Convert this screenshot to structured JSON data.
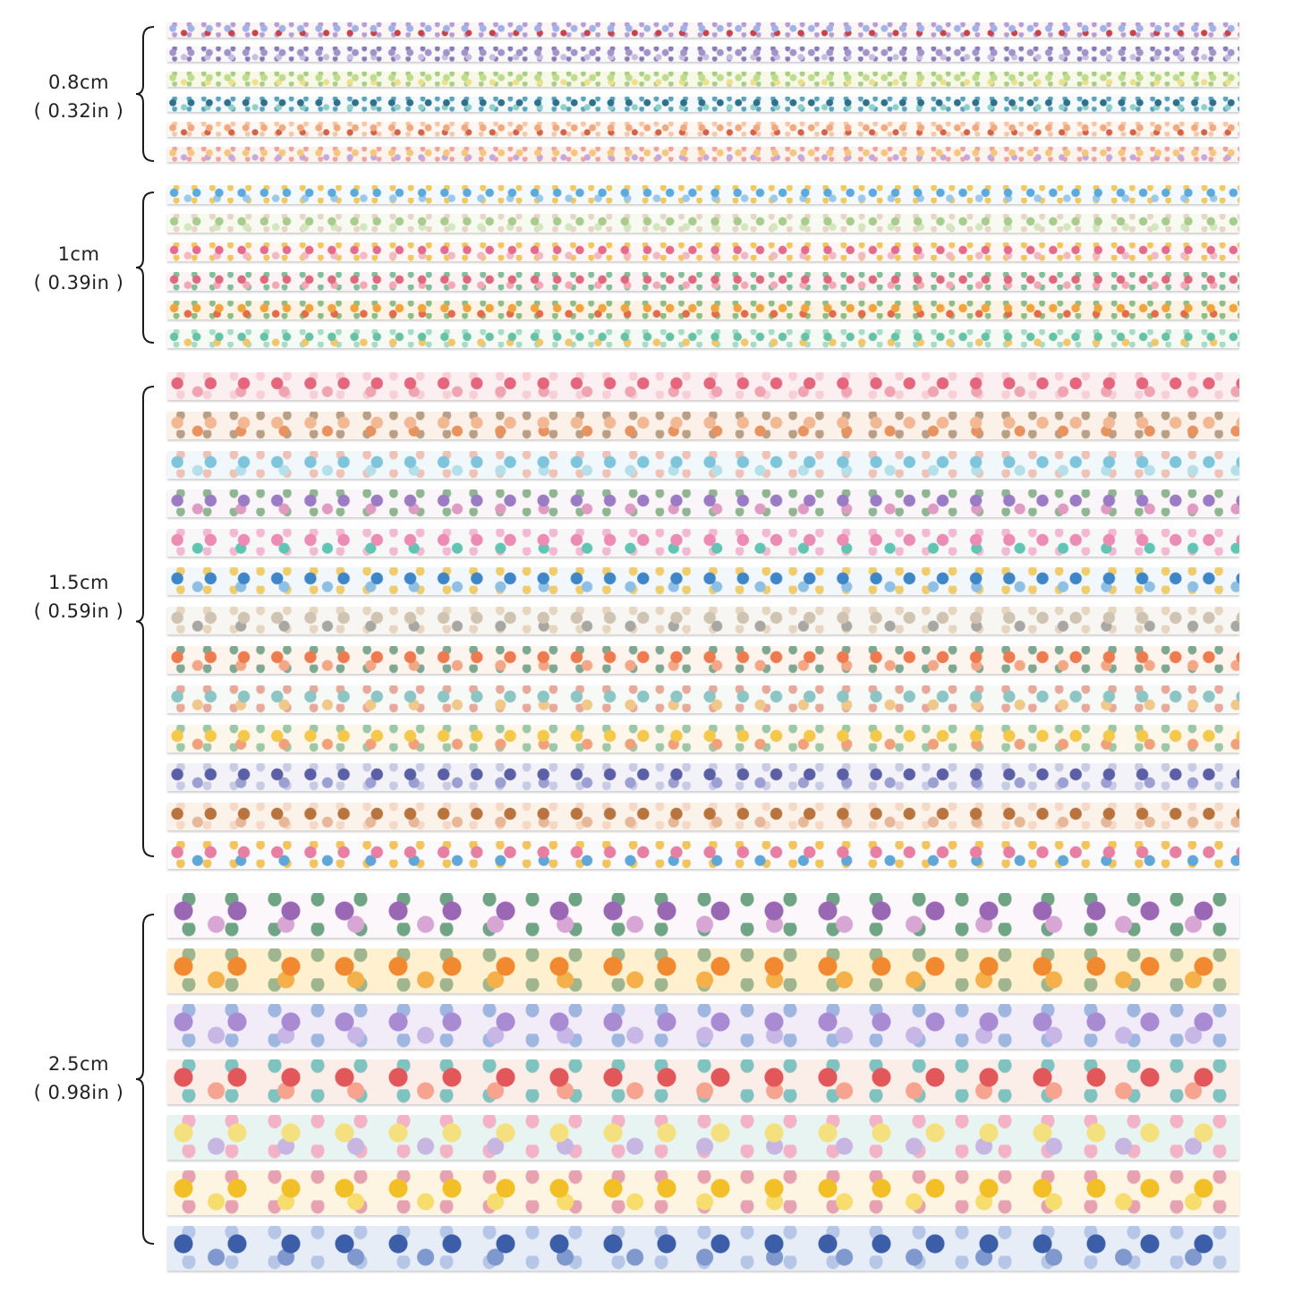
{
  "groups": [
    {
      "size_cm": "0.8cm",
      "size_in": "( 0.32in )",
      "strips": [
        {
          "base": "#fbf6f4",
          "c1": "#9fb3e6",
          "c2": "#c9414a",
          "c3": "#b89bd8"
        },
        {
          "base": "#f9f8fb",
          "c1": "#a393c8",
          "c2": "#c7bde0",
          "c3": "#8a7bb8"
        },
        {
          "base": "#f7f8e6",
          "c1": "#bfdc8e",
          "c2": "#eee08a",
          "c3": "#a6cf86"
        },
        {
          "base": "#f4fafb",
          "c1": "#2f6f8a",
          "c2": "#8ed0c9",
          "c3": "#5aa3c0"
        },
        {
          "base": "#fdf6f1",
          "c1": "#f0a97e",
          "c2": "#d2624a",
          "c3": "#f6c6a8"
        },
        {
          "base": "#fbf4ee",
          "c1": "#f4c77c",
          "c2": "#c6a7de",
          "c3": "#f1a2a0"
        }
      ]
    },
    {
      "size_cm": "1cm",
      "size_in": "( 0.39in )",
      "strips": [
        {
          "base": "#f3f9fc",
          "c1": "#5ca9db",
          "c2": "#9cc9ea",
          "c3": "#f2c95f"
        },
        {
          "base": "#f7faf1",
          "c1": "#a9cc8e",
          "c2": "#d3e6be",
          "c3": "#e9d4c6"
        },
        {
          "base": "#fdf6f5",
          "c1": "#e56b8d",
          "c2": "#f3b9c3",
          "c3": "#f2c65a"
        },
        {
          "base": "#fbf3f4",
          "c1": "#e0687c",
          "c2": "#f2a9b6",
          "c3": "#7fbf9a"
        },
        {
          "base": "#fdf3e4",
          "c1": "#f1a43c",
          "c2": "#e46a4c",
          "c3": "#8cbf84"
        },
        {
          "base": "#f5faf5",
          "c1": "#66c2a7",
          "c2": "#f2c66a",
          "c3": "#a7dcc9"
        }
      ]
    },
    {
      "size_cm": "1.5cm",
      "size_in": "( 0.59in )",
      "strips": [
        {
          "base": "#fbeff1",
          "c1": "#e4667d",
          "c2": "#f0a3b0",
          "c3": "#f7cfd6"
        },
        {
          "base": "#fbf1e8",
          "c1": "#f1b893",
          "c2": "#e7925f",
          "c3": "#b99f86"
        },
        {
          "base": "#f1f8fb",
          "c1": "#7ec5dc",
          "c2": "#b5dfe9",
          "c3": "#f0c2b6"
        },
        {
          "base": "#faf5f9",
          "c1": "#9b7cc4",
          "c2": "#e09bc3",
          "c3": "#8fb690"
        },
        {
          "base": "#f7f7f8",
          "c1": "#ec8bb3",
          "c2": "#62c4b3",
          "c3": "#f3b9d2"
        },
        {
          "base": "#f1f7fb",
          "c1": "#3f86c9",
          "c2": "#8fc0e4",
          "c3": "#f0cd6a"
        },
        {
          "base": "#f8f6f2",
          "c1": "#cfc3b2",
          "c2": "#a9a7a3",
          "c3": "#e6d6c0"
        },
        {
          "base": "#fdf4ee",
          "c1": "#ee7b4f",
          "c2": "#f4a786",
          "c3": "#7fa892"
        },
        {
          "base": "#f7f9f7",
          "c1": "#8cc5c4",
          "c2": "#f0c98a",
          "c3": "#e8a89a"
        },
        {
          "base": "#fdf6ea",
          "c1": "#f3c84b",
          "c2": "#f0a07a",
          "c3": "#9cc8a8"
        },
        {
          "base": "#f2f2f8",
          "c1": "#5b5fa6",
          "c2": "#9b9fd2",
          "c3": "#c8cbe4"
        },
        {
          "base": "#fbf2ea",
          "c1": "#b9733d",
          "c2": "#e7b79a",
          "c3": "#f5d8c6"
        },
        {
          "base": "#fafafd",
          "c1": "#e77fa2",
          "c2": "#5fa7d9",
          "c3": "#f3c45b"
        }
      ]
    },
    {
      "size_cm": "2.5cm",
      "size_in": "( 0.98in )",
      "strips": [
        {
          "base": "#fbf7fb",
          "c1": "#9a67b5",
          "c2": "#d8a6d4",
          "c3": "#6fa485"
        },
        {
          "base": "#fff1cf",
          "c1": "#f0892f",
          "c2": "#f5b04a",
          "c3": "#9fb58f"
        },
        {
          "base": "#f1ecf8",
          "c1": "#a88bd2",
          "c2": "#c8b6e6",
          "c3": "#9fb6e0"
        },
        {
          "base": "#fbede8",
          "c1": "#e2575a",
          "c2": "#f6a38f",
          "c3": "#7fc2c0"
        },
        {
          "base": "#e7f4f1",
          "c1": "#f4e07f",
          "c2": "#c7b5e2",
          "c3": "#f3b2c6"
        },
        {
          "base": "#fdf5e2",
          "c1": "#f2bf27",
          "c2": "#f7dc6e",
          "c3": "#e6a2b0"
        },
        {
          "base": "#e7edf6",
          "c1": "#3c5ea8",
          "c2": "#7f99cf",
          "c3": "#b6c6e6"
        }
      ]
    }
  ]
}
